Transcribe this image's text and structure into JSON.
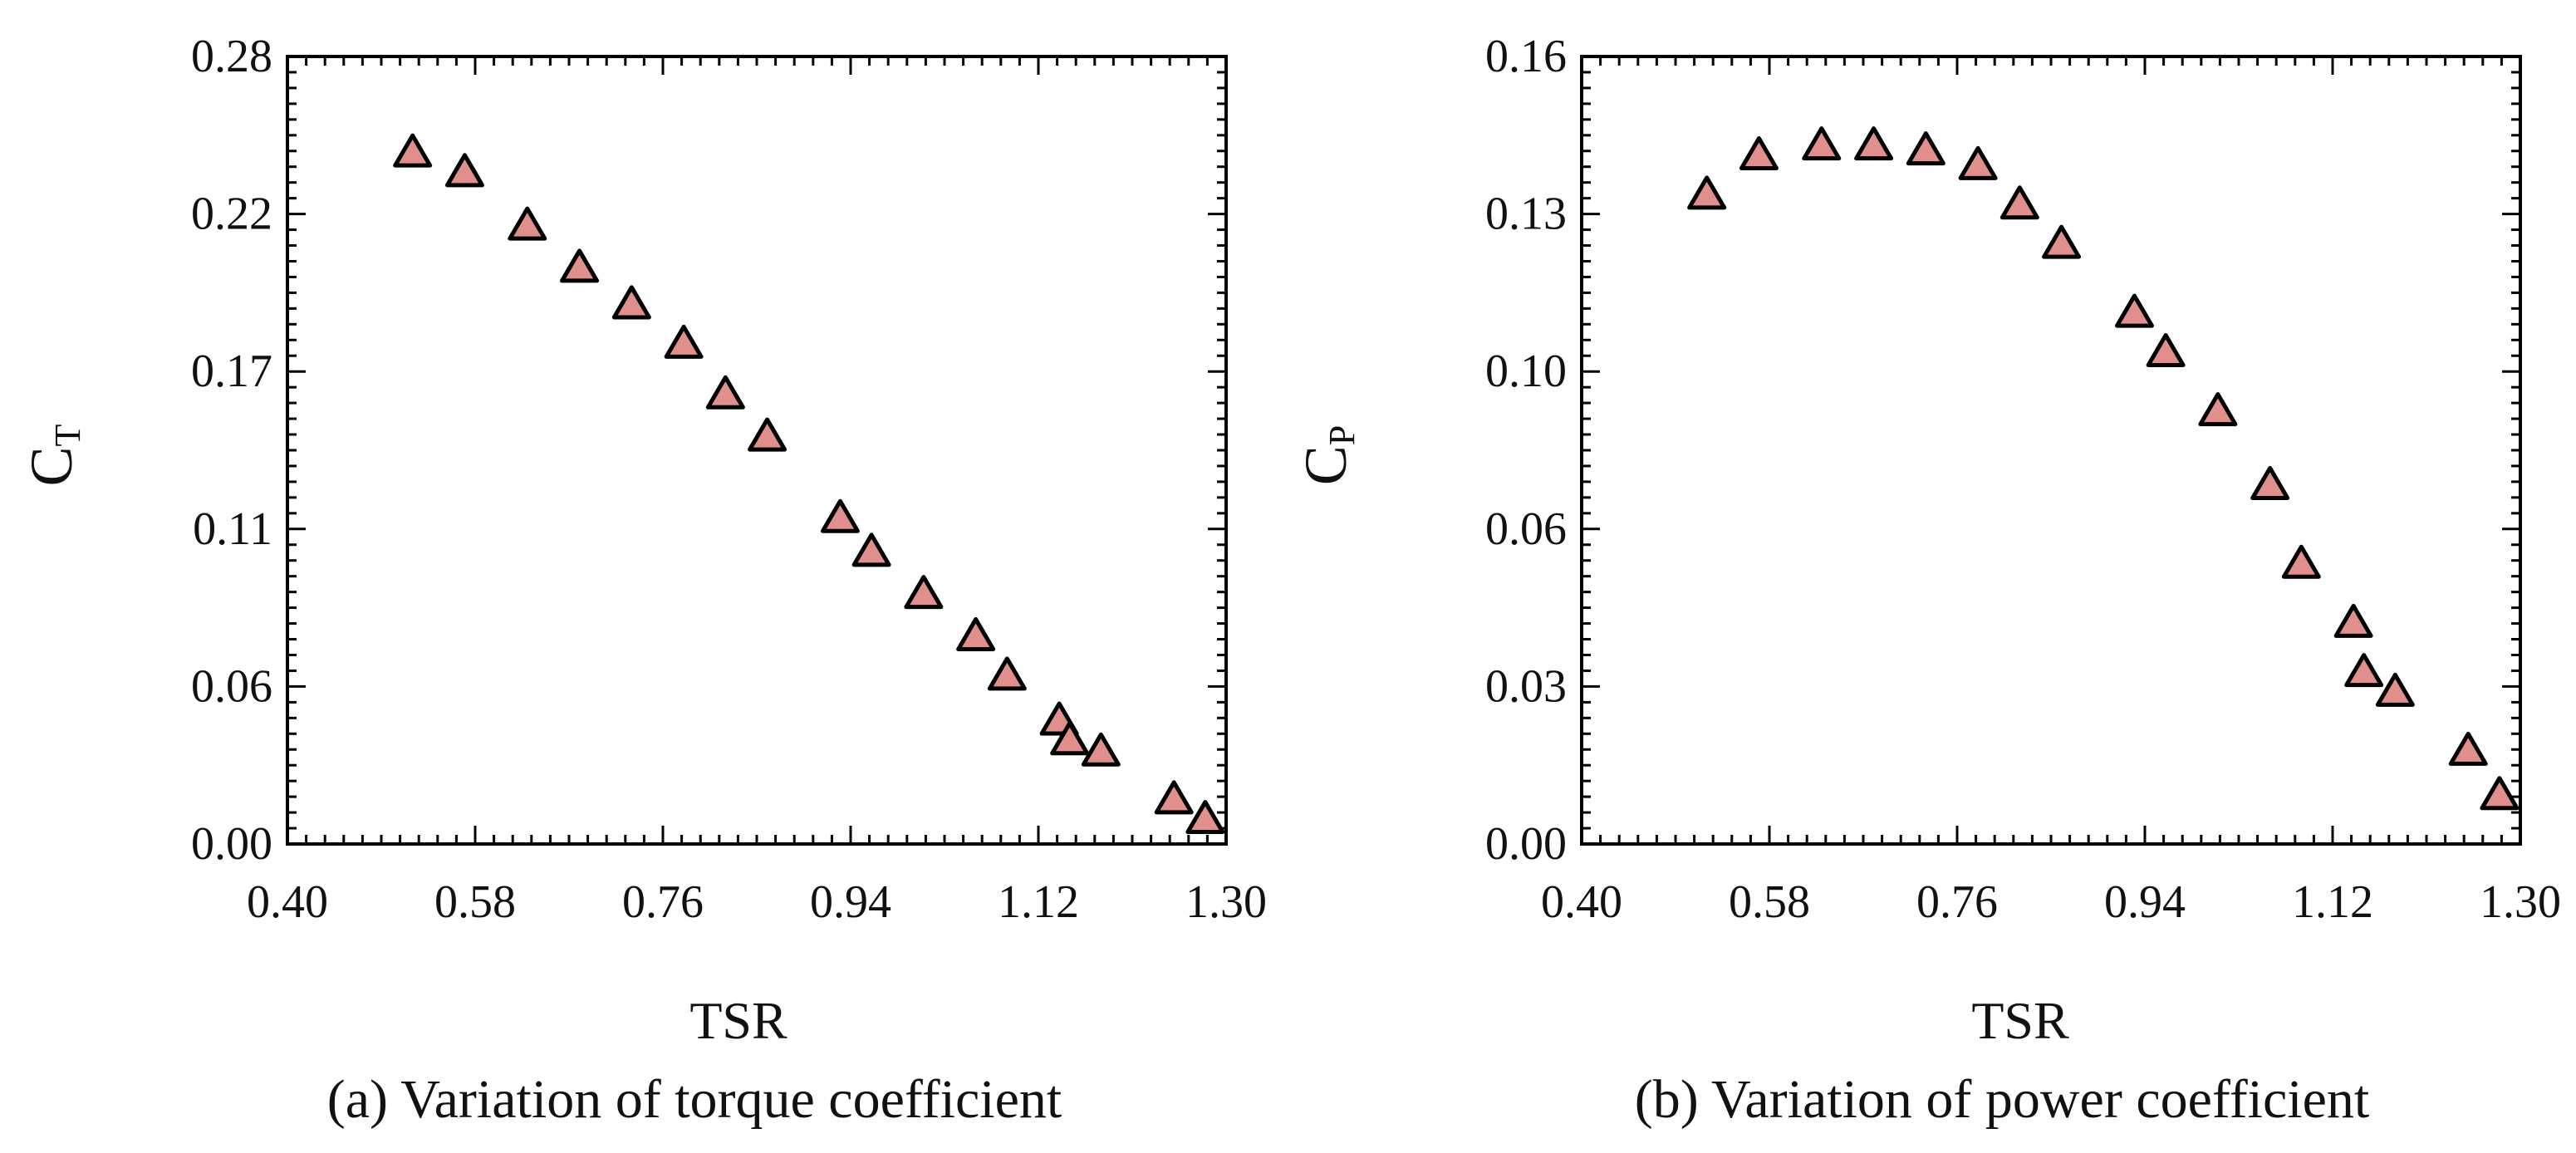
{
  "colors": {
    "marker_fill": "#e08f8c",
    "marker_stroke": "#000000",
    "axis": "#000000"
  },
  "chart_data": [
    {
      "type": "scatter",
      "title": "",
      "caption": "(a) Variation of torque coefficient",
      "xlabel": "TSR",
      "ylabel_main": "C",
      "ylabel_sub": "T",
      "xlim": [
        0.4,
        1.3
      ],
      "ylim": [
        0.0,
        0.28
      ],
      "xticks": [
        "0.40",
        "0.58",
        "0.76",
        "0.94",
        "1.12",
        "1.30"
      ],
      "yticks": [
        "0.00",
        "0.06",
        "0.11",
        "0.17",
        "0.22",
        "0.28"
      ],
      "marker": "triangle",
      "x": [
        0.52,
        0.57,
        0.63,
        0.68,
        0.73,
        0.78,
        0.82,
        0.86,
        0.93,
        0.96,
        1.01,
        1.06,
        1.09,
        1.14,
        1.15,
        1.18,
        1.25,
        1.28
      ],
      "y": [
        0.246,
        0.239,
        0.22,
        0.205,
        0.192,
        0.178,
        0.16,
        0.145,
        0.116,
        0.104,
        0.089,
        0.074,
        0.06,
        0.044,
        0.037,
        0.033,
        0.016,
        0.009
      ]
    },
    {
      "type": "scatter",
      "title": "",
      "caption": "(b) Variation of power coefficient",
      "xlabel": "TSR",
      "ylabel_main": "C",
      "ylabel_sub": "P",
      "xlim": [
        0.4,
        1.3
      ],
      "ylim": [
        0.0,
        0.16
      ],
      "xticks": [
        "0.40",
        "0.58",
        "0.76",
        "0.94",
        "1.12",
        "1.30"
      ],
      "yticks": [
        "0.00",
        "0.03",
        "0.06",
        "0.10",
        "0.13",
        "0.16"
      ],
      "marker": "triangle",
      "x": [
        0.52,
        0.57,
        0.63,
        0.68,
        0.73,
        0.78,
        0.82,
        0.86,
        0.93,
        0.96,
        1.01,
        1.06,
        1.09,
        1.14,
        1.15,
        1.18,
        1.25,
        1.28
      ],
      "y": [
        0.132,
        0.14,
        0.142,
        0.142,
        0.141,
        0.138,
        0.13,
        0.122,
        0.108,
        0.1,
        0.088,
        0.073,
        0.057,
        0.045,
        0.035,
        0.031,
        0.019,
        0.01
      ]
    }
  ]
}
